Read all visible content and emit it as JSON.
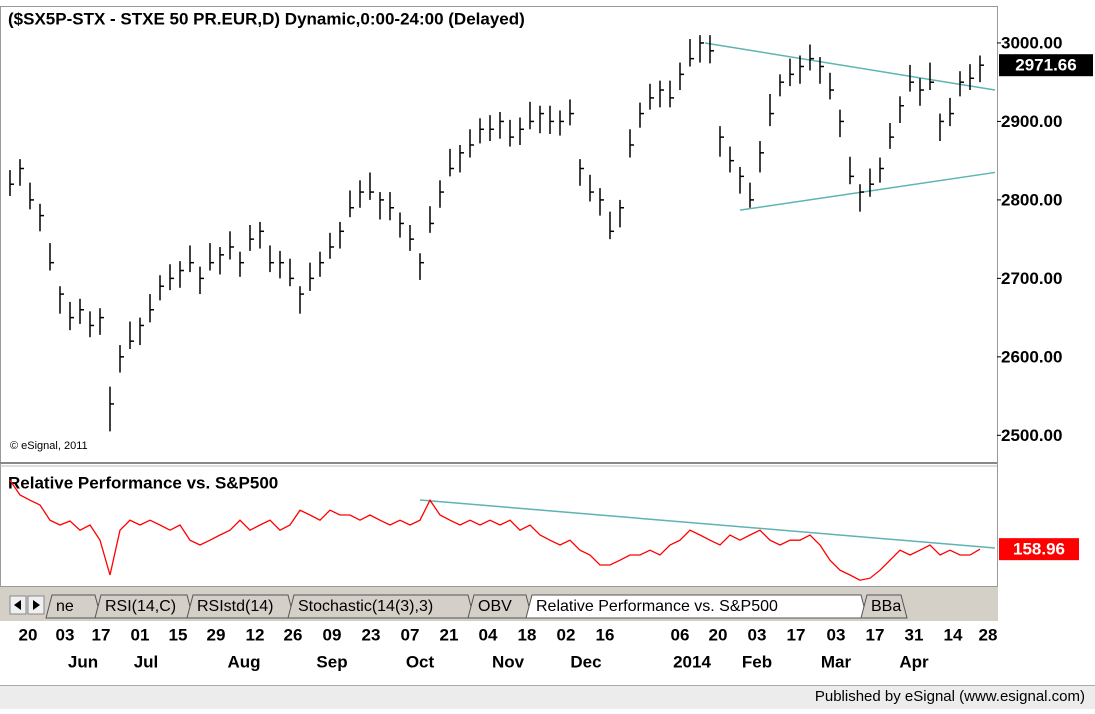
{
  "chart_data": [
    {
      "type": "hlc",
      "title": "($SX5P-STX - STXE 50 PR.EUR,D) Dynamic,0:00-24:00 (Delayed)",
      "watermark": "© eSignal, 2011",
      "color": "#000000",
      "ylim": [
        2466,
        3042
      ],
      "yticks": [
        {
          "value": 2500,
          "label": "2500.00"
        },
        {
          "value": 2600,
          "label": "2600.00"
        },
        {
          "value": 2700,
          "label": "2700.00"
        },
        {
          "value": 2800,
          "label": "2800.00"
        },
        {
          "value": 2900,
          "label": "2900.00"
        },
        {
          "value": 3000,
          "label": "3000.00"
        }
      ],
      "high": [
        2838,
        2852,
        2822,
        2795,
        2745,
        2690,
        2670,
        2674,
        2658,
        2662,
        2562,
        2615,
        2645,
        2650,
        2680,
        2704,
        2718,
        2722,
        2742,
        2715,
        2745,
        2740,
        2760,
        2734,
        2768,
        2772,
        2742,
        2735,
        2725,
        2690,
        2720,
        2734,
        2758,
        2772,
        2812,
        2825,
        2835,
        2810,
        2810,
        2784,
        2768,
        2732,
        2792,
        2825,
        2865,
        2870,
        2890,
        2904,
        2908,
        2912,
        2902,
        2905,
        2925,
        2920,
        2920,
        2914,
        2928,
        2852,
        2832,
        2815,
        2785,
        2800,
        2890,
        2924,
        2948,
        2952,
        2952,
        2975,
        3005,
        3010,
        3010,
        2894,
        2868,
        2842,
        2822,
        2875,
        2935,
        2960,
        2980,
        2984,
        2998,
        2982,
        2962,
        2915,
        2855,
        2820,
        2840,
        2854,
        2898,
        2932,
        2972,
        2955,
        2975,
        2910,
        2930,
        2964,
        2973,
        2984
      ],
      "low": [
        2805,
        2818,
        2788,
        2760,
        2710,
        2655,
        2634,
        2642,
        2625,
        2628,
        2505,
        2580,
        2610,
        2615,
        2644,
        2672,
        2685,
        2688,
        2708,
        2680,
        2710,
        2705,
        2724,
        2702,
        2735,
        2738,
        2708,
        2700,
        2690,
        2655,
        2684,
        2702,
        2725,
        2738,
        2778,
        2790,
        2800,
        2775,
        2774,
        2752,
        2735,
        2698,
        2758,
        2790,
        2830,
        2835,
        2854,
        2872,
        2875,
        2878,
        2868,
        2870,
        2890,
        2885,
        2884,
        2882,
        2895,
        2818,
        2798,
        2780,
        2750,
        2765,
        2854,
        2892,
        2915,
        2918,
        2918,
        2940,
        2970,
        2975,
        2974,
        2855,
        2835,
        2808,
        2790,
        2835,
        2894,
        2932,
        2945,
        2948,
        2965,
        2948,
        2928,
        2880,
        2820,
        2785,
        2804,
        2822,
        2865,
        2898,
        2938,
        2920,
        2940,
        2875,
        2894,
        2932,
        2940,
        2950
      ],
      "close": [
        2820,
        2840,
        2800,
        2780,
        2720,
        2680,
        2650,
        2660,
        2640,
        2650,
        2540,
        2600,
        2620,
        2640,
        2660,
        2690,
        2700,
        2710,
        2720,
        2700,
        2720,
        2730,
        2740,
        2720,
        2750,
        2760,
        2720,
        2720,
        2700,
        2680,
        2700,
        2720,
        2740,
        2760,
        2790,
        2810,
        2810,
        2800,
        2790,
        2770,
        2750,
        2720,
        2770,
        2810,
        2840,
        2860,
        2870,
        2890,
        2890,
        2900,
        2880,
        2890,
        2900,
        2910,
        2900,
        2900,
        2910,
        2840,
        2810,
        2800,
        2760,
        2790,
        2870,
        2910,
        2930,
        2940,
        2930,
        2960,
        2980,
        3000,
        2990,
        2880,
        2850,
        2830,
        2800,
        2860,
        2910,
        2950,
        2960,
        2970,
        2980,
        2970,
        2940,
        2900,
        2830,
        2810,
        2820,
        2840,
        2880,
        2920,
        2950,
        2940,
        2950,
        2900,
        2910,
        2950,
        2955,
        2971.66
      ],
      "last_label_color": "#000000",
      "trendline_color": "#5fb3b3",
      "trendlines": [
        {
          "x": [
            69.5,
            98.5
          ],
          "values": [
            3000,
            2940
          ]
        },
        {
          "x": [
            73,
            98.5
          ],
          "values": [
            2787,
            2835
          ]
        }
      ]
    },
    {
      "type": "line",
      "title": "Relative Performance vs. S&P500",
      "color": "#ff0000",
      "ylim": [
        150.5,
        179.25
      ],
      "values": [
        176.2,
        172.5,
        171.2,
        170,
        166.2,
        165,
        166,
        163.7,
        165,
        161.2,
        152.5,
        163.7,
        166.2,
        165,
        166.2,
        165,
        163.7,
        165,
        161.2,
        160,
        161.2,
        162.5,
        163.7,
        166.2,
        163.7,
        165,
        166.2,
        163.7,
        165,
        168.7,
        167.5,
        166.2,
        168.7,
        167.5,
        167.5,
        166.2,
        167.5,
        166.2,
        165,
        166.2,
        165,
        166.2,
        171.2,
        167.5,
        166.2,
        165,
        166.2,
        165,
        166.2,
        165,
        166.2,
        163.7,
        165,
        162.5,
        161.2,
        160,
        161.2,
        158.7,
        157.5,
        155,
        155,
        156.2,
        157.5,
        157.5,
        158.7,
        157.5,
        160,
        161.2,
        163.7,
        162.5,
        161.2,
        160,
        162.5,
        161.2,
        162.5,
        163.7,
        161.2,
        160,
        161.2,
        161.2,
        162.5,
        160,
        156.2,
        153.7,
        152.5,
        151.2,
        151.7,
        153.7,
        156.2,
        158.7,
        157.5,
        158.7,
        160,
        157.5,
        158.7,
        157.5,
        157.5,
        158.96
      ],
      "trendline_color": "#5fb3b3",
      "trendlines": [
        {
          "x": [
            41,
            98.5
          ],
          "values": [
            171.25,
            159.25
          ]
        }
      ]
    }
  ],
  "x_axis": {
    "day_labels": [
      "20",
      "03",
      "17",
      "01",
      "15",
      "29",
      "12",
      "26",
      "09",
      "23",
      "07",
      "21",
      "04",
      "18",
      "02",
      "16",
      "06",
      "20",
      "03",
      "17",
      "03",
      "17",
      "31",
      "14",
      "28"
    ],
    "month_labels": [
      "Jun",
      "Jul",
      "Aug",
      "Sep",
      "Oct",
      "Nov",
      "Dec",
      "2014",
      "Feb",
      "Mar",
      "Apr"
    ]
  },
  "tabs": [
    "ne",
    "RSI(14,C)",
    "RSIstd(14)",
    "Stochastic(14(3),3)",
    "OBV",
    "Relative Performance vs. S&P500",
    "BBa"
  ],
  "footer": "Published by eSignal (www.esignal.com)"
}
